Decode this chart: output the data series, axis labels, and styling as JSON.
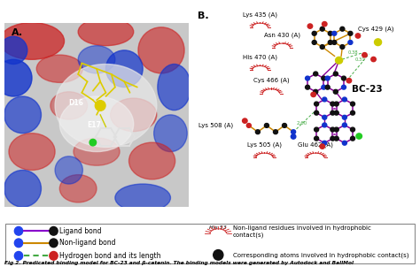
{
  "fig_width": 4.74,
  "fig_height": 3.02,
  "dpi": 100,
  "bg_color": "#ffffff",
  "panel_a_label": "A.",
  "panel_b_label": "B.",
  "legend_box_bg": "#ffffff",
  "legend_items_left": [
    {
      "label": "Ligand bond",
      "line_color": "#8800cc",
      "node1_color": "#2244ee",
      "node2_color": "#111111"
    },
    {
      "label": "Non-ligand bond",
      "line_color": "#cc8800",
      "node1_color": "#2244ee",
      "node2_color": "#111111"
    },
    {
      "label": "Hydrogen bond and its length",
      "line_color": "#44aa44",
      "node1_color": "#2244ee",
      "node2_color": "#cc2222",
      "dashed": true
    }
  ],
  "caption": "Fig 2. Predicated binding model for BC-23 and β-catenin. The binding models were generated by Autodock and BallMol",
  "bc23_label": "BC-23",
  "d16_label": "D16",
  "e17_label": "E17"
}
